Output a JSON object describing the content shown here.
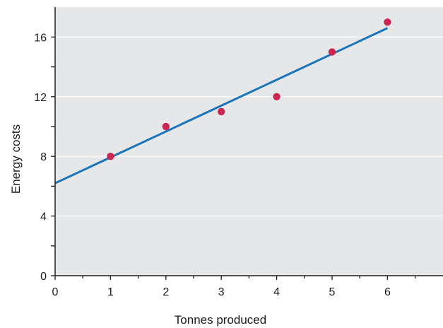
{
  "chart_data": {
    "type": "scatter",
    "xlabel": "Tonnes produced",
    "ylabel": "Energy costs",
    "xlim": [
      0,
      7
    ],
    "ylim": [
      0,
      18
    ],
    "xticks": [
      0,
      1,
      2,
      3,
      4,
      5,
      6
    ],
    "yticks": [
      0,
      4,
      8,
      12,
      16
    ],
    "yminor": [
      2,
      6,
      10,
      14
    ],
    "grid": true,
    "points": [
      {
        "x": 1,
        "y": 8
      },
      {
        "x": 2,
        "y": 10
      },
      {
        "x": 3,
        "y": 11
      },
      {
        "x": 4,
        "y": 12
      },
      {
        "x": 5,
        "y": 15
      },
      {
        "x": 6,
        "y": 17
      }
    ],
    "trendline": {
      "start": {
        "x": 0,
        "y": 6.2
      },
      "end": {
        "x": 6,
        "y": 16.6
      }
    },
    "colors": {
      "plot_background": "#e6e7e8",
      "grid": "#ffffff",
      "points": "#c8284f",
      "trendline": "#1a75bb",
      "axis": "#231f20"
    }
  }
}
